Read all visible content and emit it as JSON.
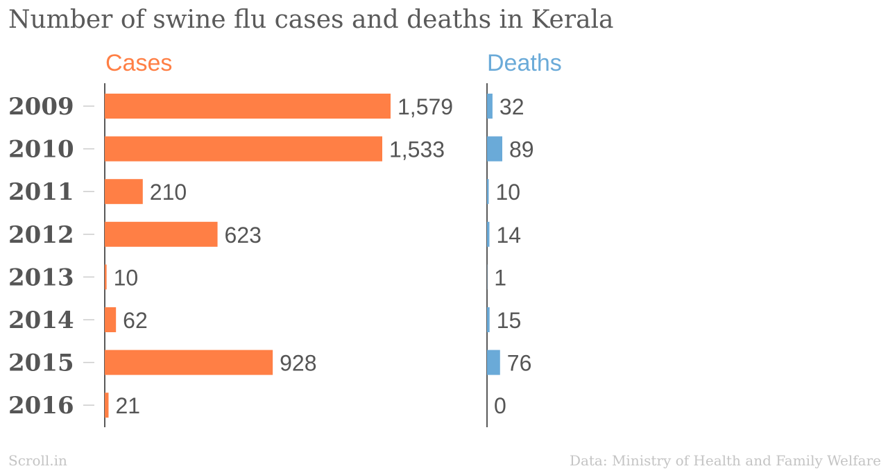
{
  "title": "Number of swine flu cases and deaths in Kerala",
  "footer": {
    "source_brand": "Scroll.in",
    "credit": "Data: Ministry of Health and Family Welfare"
  },
  "chart_data": {
    "type": "bar",
    "orientation": "horizontal",
    "title": "Number of swine flu cases and deaths in Kerala",
    "categories": [
      "2009",
      "2010",
      "2011",
      "2012",
      "2013",
      "2014",
      "2015",
      "2016"
    ],
    "series": [
      {
        "name": "Cases",
        "color": "#ff7f45",
        "values": [
          1579,
          1533,
          210,
          623,
          10,
          62,
          928,
          21
        ],
        "labels": [
          "1,579",
          "1,533",
          "210",
          "623",
          "10",
          "62",
          "928",
          "21"
        ]
      },
      {
        "name": "Deaths",
        "color": "#6aaad8",
        "values": [
          32,
          89,
          10,
          14,
          1,
          15,
          76,
          0
        ],
        "labels": [
          "32",
          "89",
          "10",
          "14",
          "1",
          "15",
          "76",
          "0"
        ]
      }
    ],
    "grid": false,
    "colors": {
      "axis": "#222222",
      "tick": "#cccccc",
      "text": "#555555",
      "muted": "#c4c4c4"
    }
  }
}
